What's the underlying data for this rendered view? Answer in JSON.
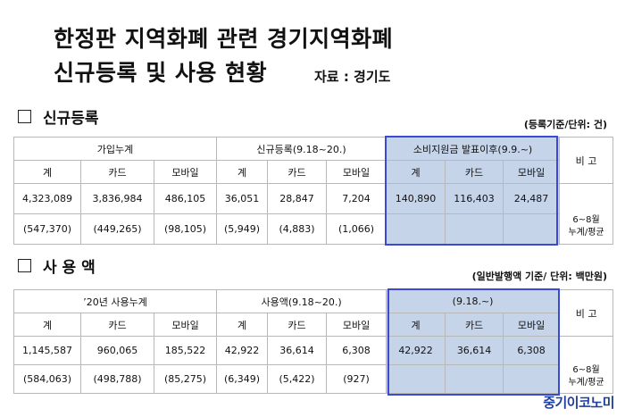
{
  "title": {
    "line1": "한정판 지역화폐 관련 경기지역화폐",
    "line2": "신규등록 및 사용 현황",
    "source": "자료 : 경기도"
  },
  "section1": {
    "heading": "신규등록",
    "note": "(등록기준/단위: 건)",
    "groups": [
      "가입누계",
      "신규등록(9.18~20.)",
      "소비지원금 발표이후(9.9.~)"
    ],
    "remark_header": "비 고",
    "subheaders": [
      "계",
      "카드",
      "모바일",
      "계",
      "카드",
      "모바일",
      "계",
      "카드",
      "모바일"
    ],
    "row1": [
      "4,323,089",
      "3,836,984",
      "486,105",
      "36,051",
      "28,847",
      "7,204",
      "140,890",
      "116,403",
      "24,487"
    ],
    "row2": [
      "(547,370)",
      "(449,265)",
      "(98,105)",
      "(5,949)",
      "(4,883)",
      "(1,066)",
      "",
      "",
      ""
    ],
    "remark_line1": "6~8월",
    "remark_line2": "누계/평균"
  },
  "section2": {
    "heading": "사 용 액",
    "note": "(일반발행액 기준/ 단위: 백만원)",
    "groups": [
      "’20년 사용누계",
      "사용액(9.18~20.)",
      "(9.18.~)"
    ],
    "remark_header": "비 고",
    "subheaders": [
      "계",
      "카드",
      "모바일",
      "계",
      "카드",
      "모바일",
      "계",
      "카드",
      "모바일"
    ],
    "row1": [
      "1,145,587",
      "960,065",
      "185,522",
      "42,922",
      "36,614",
      "6,308",
      "42,922",
      "36,614",
      "6,308"
    ],
    "row2": [
      "(584,063)",
      "(498,788)",
      "(85,275)",
      "(6,349)",
      "(5,422)",
      "(927)",
      "",
      "",
      ""
    ],
    "remark_line1": "6~8월",
    "remark_line2": "누계/평균"
  },
  "watermark": "중기이코노미",
  "colors": {
    "highlight_fill": "#c6d4ea",
    "highlight_border": "#3b49d6",
    "watermark": "#1f3f9c"
  }
}
